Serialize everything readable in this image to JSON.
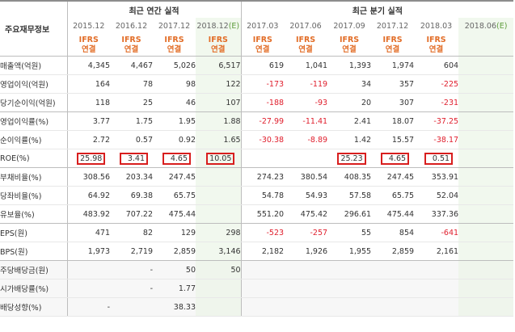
{
  "header": {
    "row_label": "주요재무정보",
    "annual_group": "최근 연간 실적",
    "quarterly_group": "최근 분기 실적",
    "annual_periods": [
      "2015.12",
      "2016.12",
      "2017.12",
      "2018.12"
    ],
    "annual_estimate_marker": "(E)",
    "quarterly_periods": [
      "2017.03",
      "2017.06",
      "2017.09",
      "2017.12",
      "2018.03",
      "2018.06"
    ],
    "quarterly_estimate_marker": "(E)",
    "accounting_top": "IFRS",
    "accounting_bottom": "연결"
  },
  "rows": [
    {
      "label": "매출액(억원)",
      "values": [
        "4,345",
        "4,467",
        "5,026",
        "6,517",
        "619",
        "1,041",
        "1,393",
        "1,974",
        "604",
        ""
      ]
    },
    {
      "label": "영업이익(억원)",
      "values": [
        "164",
        "78",
        "98",
        "122",
        "-173",
        "-119",
        "34",
        "357",
        "-225",
        ""
      ]
    },
    {
      "label": "당기순이익(억원)",
      "values": [
        "118",
        "25",
        "46",
        "107",
        "-188",
        "-93",
        "20",
        "307",
        "-231",
        ""
      ]
    },
    {
      "label": "영업이익률(%)",
      "values": [
        "3.77",
        "1.75",
        "1.95",
        "1.88",
        "-27.99",
        "-11.41",
        "2.41",
        "18.07",
        "-37.25",
        ""
      ]
    },
    {
      "label": "순이익률(%)",
      "values": [
        "2.72",
        "0.57",
        "0.92",
        "1.65",
        "-30.38",
        "-8.89",
        "1.42",
        "15.57",
        "-38.17",
        ""
      ]
    },
    {
      "label": "ROE(%)",
      "values": [
        "25.98",
        "3.41",
        "4.65",
        "10.05",
        "",
        "",
        "25.23",
        "4.65",
        "0.51",
        ""
      ]
    },
    {
      "label": "부채비율(%)",
      "values": [
        "308.56",
        "203.34",
        "247.45",
        "",
        "274.23",
        "380.54",
        "408.35",
        "247.45",
        "353.91",
        ""
      ]
    },
    {
      "label": "당좌비율(%)",
      "values": [
        "64.92",
        "69.38",
        "65.75",
        "",
        "54.78",
        "54.93",
        "57.58",
        "65.75",
        "52.04",
        ""
      ]
    },
    {
      "label": "유보율(%)",
      "values": [
        "483.92",
        "707.22",
        "475.44",
        "",
        "551.20",
        "475.42",
        "296.61",
        "475.44",
        "337.36",
        ""
      ]
    },
    {
      "label": "EPS(원)",
      "values": [
        "471",
        "82",
        "129",
        "298",
        "-523",
        "-257",
        "55",
        "854",
        "-641",
        ""
      ]
    },
    {
      "label": "BPS(원)",
      "values": [
        "1,973",
        "2,719",
        "2,859",
        "3,146",
        "2,182",
        "1,926",
        "1,955",
        "2,859",
        "2,161",
        ""
      ]
    },
    {
      "label": "주당배당금(원)",
      "values": [
        "",
        "-",
        "50",
        "50",
        "",
        "",
        "",
        "",
        "",
        ""
      ]
    },
    {
      "label": "시가배당률(%)",
      "values": [
        "",
        "-",
        "1.77",
        "",
        "",
        "",
        "",
        "",
        "",
        ""
      ]
    },
    {
      "label": "배당성향(%)",
      "values": [
        "-",
        "",
        "38.33",
        "",
        "",
        "",
        "",
        "",
        "",
        ""
      ]
    }
  ],
  "highlight": {
    "roe_boxed_cells": [
      0,
      1,
      2,
      3,
      6,
      7,
      8
    ],
    "box_color": "#d81e1e"
  },
  "colors": {
    "negative": "#e0202e",
    "accounting_label": "#e26d27",
    "estimate_background": "#f1f8ee",
    "estimate_marker": "#5c9b3b"
  }
}
